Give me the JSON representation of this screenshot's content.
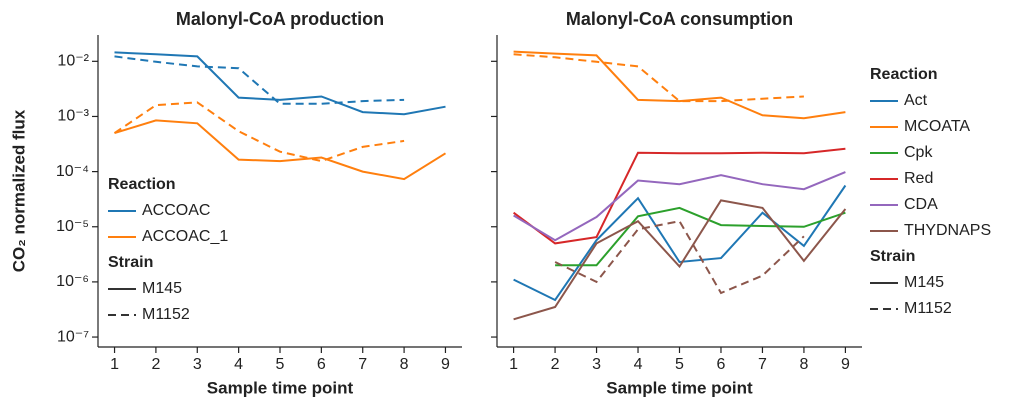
{
  "chart_data": [
    {
      "type": "line",
      "title": "Malonyl-CoA production",
      "xlabel": "Sample time point",
      "ylabel": "CO₂ normalized flux",
      "log_y": true,
      "x": [
        1,
        2,
        3,
        4,
        5,
        6,
        7,
        8,
        9
      ],
      "xlim": [
        0.6,
        9.4
      ],
      "xticks": [
        1,
        2,
        3,
        4,
        5,
        6,
        7,
        8,
        9
      ],
      "ylim": [
        6.6e-08,
        0.03
      ],
      "yticks": [
        {
          "value": 1e-07,
          "label": "10⁻⁷"
        },
        {
          "value": 1e-06,
          "label": "10⁻⁶"
        },
        {
          "value": 1e-05,
          "label": "10⁻⁵"
        },
        {
          "value": 0.0001,
          "label": "10⁻⁴"
        },
        {
          "value": 0.001,
          "label": "10⁻³"
        },
        {
          "value": 0.01,
          "label": "10⁻²"
        }
      ],
      "legend_title": "Reaction",
      "strain_title": "Strain",
      "strains": [
        {
          "name": "M145",
          "dash": "solid"
        },
        {
          "name": "M1152",
          "dash": "dashed"
        }
      ],
      "series": [
        {
          "name": "ACCOAC",
          "strain": "M145",
          "color": "#1f77b4",
          "values": [
            0.0145,
            0.0134,
            0.0123,
            0.0022,
            0.002,
            0.0023,
            0.0012,
            0.0011,
            0.0015
          ]
        },
        {
          "name": "ACCOAC",
          "strain": "M1152",
          "color": "#1f77b4",
          "values": [
            0.0123,
            0.0098,
            0.0081,
            0.0075,
            0.0017,
            0.0017,
            0.0019,
            0.002,
            null
          ]
        },
        {
          "name": "ACCOAC_1",
          "strain": "M145",
          "color": "#ff7f0e",
          "values": [
            0.0005,
            0.00085,
            0.00075,
            0.000165,
            0.000155,
            0.00018,
            0.0001,
            7.3e-05,
            0.000215
          ]
        },
        {
          "name": "ACCOAC_1",
          "strain": "M1152",
          "color": "#ff7f0e",
          "values": [
            0.0005,
            0.0016,
            0.0018,
            0.00054,
            0.00023,
            0.000155,
            0.00028,
            0.00036,
            null
          ]
        }
      ]
    },
    {
      "type": "line",
      "title": "Malonyl-CoA consumption",
      "xlabel": "Sample time point",
      "log_y": true,
      "x": [
        1,
        2,
        3,
        4,
        5,
        6,
        7,
        8,
        9
      ],
      "xlim": [
        0.6,
        9.4
      ],
      "xticks": [
        1,
        2,
        3,
        4,
        5,
        6,
        7,
        8,
        9
      ],
      "ylim": [
        6.6e-08,
        0.03
      ],
      "yticks": [
        1e-07,
        1e-06,
        1e-05,
        0.0001,
        0.001,
        0.01
      ],
      "legend_title": "Reaction",
      "strain_title": "Strain",
      "strains": [
        {
          "name": "M145",
          "dash": "solid"
        },
        {
          "name": "M1152",
          "dash": "dashed"
        }
      ],
      "series": [
        {
          "name": "Act",
          "strain": "M145",
          "color": "#1f77b4",
          "values": [
            1.1e-06,
            4.7e-07,
            5.7e-06,
            3.3e-05,
            2.3e-06,
            2.7e-06,
            1.8e-05,
            4.5e-06,
            5.6e-05
          ]
        },
        {
          "name": "MCOATA",
          "strain": "M145",
          "color": "#ff7f0e",
          "values": [
            0.015,
            0.0138,
            0.0128,
            0.002,
            0.0019,
            0.0022,
            0.00105,
            0.00093,
            0.0012
          ]
        },
        {
          "name": "MCOATA",
          "strain": "M1152",
          "color": "#ff7f0e",
          "values": [
            0.0134,
            0.0118,
            0.0098,
            0.0081,
            0.0019,
            0.0019,
            0.0021,
            0.0023,
            null
          ]
        },
        {
          "name": "Cpk",
          "strain": "M145",
          "color": "#2ca02c",
          "values": [
            null,
            2e-06,
            2e-06,
            1.55e-05,
            2.2e-05,
            1.07e-05,
            1.03e-05,
            1e-05,
            1.8e-05
          ]
        },
        {
          "name": "Red",
          "strain": "M145",
          "color": "#d62728",
          "values": [
            1.8e-05,
            5e-06,
            6.5e-06,
            0.00022,
            0.000215,
            0.000215,
            0.00022,
            0.000215,
            0.00026
          ]
        },
        {
          "name": "CDA",
          "strain": "M145",
          "color": "#9467bd",
          "values": [
            1.6e-05,
            5.7e-06,
            1.5e-05,
            6.9e-05,
            5.9e-05,
            8.6e-05,
            5.9e-05,
            4.8e-05,
            9.8e-05
          ]
        },
        {
          "name": "THYDNAPS",
          "strain": "M145",
          "color": "#8c564b",
          "values": [
            2.1e-07,
            3.5e-07,
            5e-06,
            1.26e-05,
            1.9e-06,
            3e-05,
            2.2e-05,
            2.4e-06,
            2.1e-05
          ]
        },
        {
          "name": "THYDNAPS",
          "strain": "M1152",
          "color": "#8c564b",
          "values": [
            null,
            2.3e-06,
            1e-06,
            9e-06,
            1.26e-05,
            6.3e-07,
            1.3e-06,
            6.7e-06,
            null
          ]
        }
      ]
    }
  ]
}
